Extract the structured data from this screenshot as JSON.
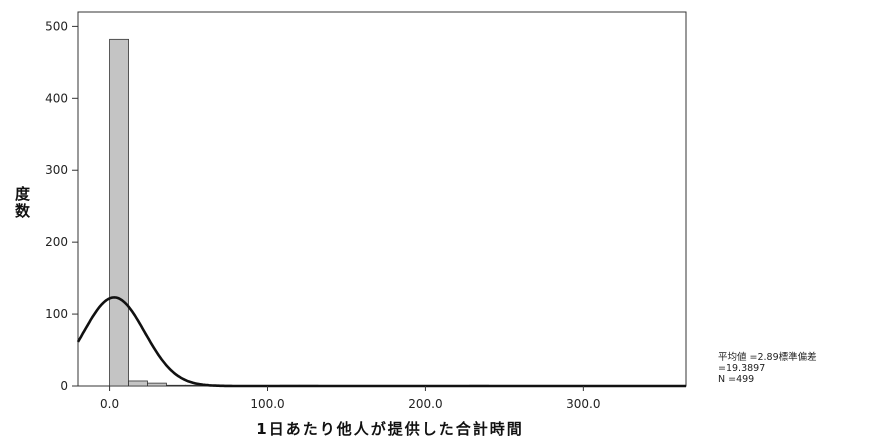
{
  "chart_data": {
    "type": "histogram",
    "xlabel": "1日あたり他人が提供した合計時間",
    "ylabel": "度数",
    "xlim": [
      -20,
      365
    ],
    "ylim": [
      0,
      520
    ],
    "x_ticks": [
      0,
      100,
      200,
      300
    ],
    "x_tick_labels": [
      "0.0",
      "100.0",
      "200.0",
      "300.0"
    ],
    "y_ticks": [
      0,
      100,
      200,
      300,
      400,
      500
    ],
    "y_tick_labels": [
      "0",
      "100",
      "200",
      "300",
      "400",
      "500"
    ],
    "bin_width": 12,
    "bins": [
      {
        "x0": 0,
        "x1": 12,
        "count": 482
      },
      {
        "x0": 12,
        "x1": 24,
        "count": 7
      },
      {
        "x0": 24,
        "x1": 36,
        "count": 4
      },
      {
        "x0": 36,
        "x1": 48,
        "count": 1
      },
      {
        "x0": 48,
        "x1": 60,
        "count": 1
      },
      {
        "x0": 60,
        "x1": 72,
        "count": 1
      },
      {
        "x0": 108,
        "x1": 120,
        "count": 1
      },
      {
        "x0": 120,
        "x1": 132,
        "count": 1
      },
      {
        "x0": 228,
        "x1": 240,
        "count": 1
      }
    ],
    "normal_curve": {
      "mean": 2.89,
      "sd": 19.3897,
      "n": 499
    },
    "stats": {
      "line1": "平均値 =2.89標準偏差",
      "line2": "=19.3897",
      "line3": "N =499"
    },
    "grid": false,
    "colors": {
      "bar_fill": "#c4c4c4",
      "bar_stroke": "#333333",
      "curve": "#111111",
      "plot_bg": "#ffffff"
    }
  }
}
